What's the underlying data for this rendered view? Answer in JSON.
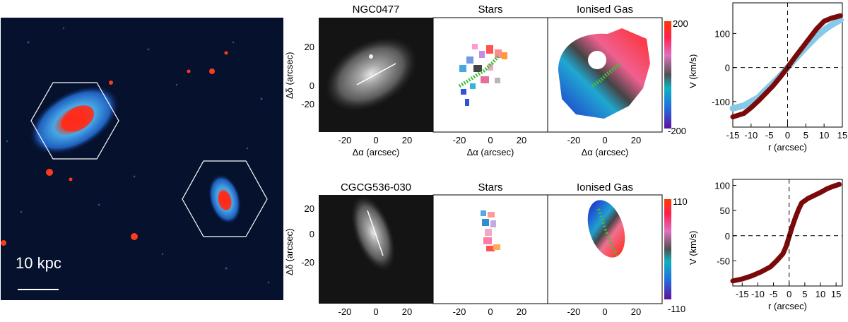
{
  "overview": {
    "scalebar_label": "10 kpc"
  },
  "galaxy_1": {
    "name": "NGC0477",
    "stars_title": "Stars",
    "gas_title": "Ionised Gas",
    "colorbar": {
      "max_label": "200",
      "min_label": "-200",
      "max": 200,
      "min": -200,
      "label": "V (km/s)"
    },
    "ylabel": "Δδ (arcsec)",
    "xlabel": "Δα (arcsec)",
    "map_xticks": [
      "-20",
      "0",
      "20"
    ],
    "map_yticks": [
      "20",
      "0",
      "-20"
    ]
  },
  "galaxy_2": {
    "name": "CGCG536-030",
    "stars_title": "Stars",
    "gas_title": "Ionised Gas",
    "colorbar": {
      "max_label": "110",
      "min_label": "-110",
      "max": 110,
      "min": -110,
      "label": "V (km/s)"
    },
    "ylabel": "Δδ (arcsec)",
    "xlabel": "Δα (arcsec)",
    "map_xticks": [
      "-20",
      "0",
      "20"
    ],
    "map_yticks": [
      "20",
      "0",
      "-20"
    ]
  },
  "chart_data": [
    {
      "type": "line",
      "xlabel": "r (arcsec)",
      "ylabel": "V (km/s)",
      "xlim": [
        -15,
        15
      ],
      "ylim": [
        -175,
        190
      ],
      "xticks": [
        -15,
        -10,
        -5,
        0,
        5,
        10,
        15
      ],
      "yticks": [
        100,
        0,
        -100
      ],
      "series": [
        {
          "color": "#87c9e8",
          "x": [
            -15,
            -12,
            -10,
            -8,
            -6,
            -4,
            -2,
            0,
            2,
            4,
            6,
            8,
            10,
            12,
            14.5
          ],
          "y": [
            -120,
            -112,
            -100,
            -88,
            -66,
            -46,
            -24,
            0,
            24,
            48,
            70,
            92,
            110,
            125,
            140
          ]
        },
        {
          "color": "#7a0a0a",
          "x": [
            -15,
            -12,
            -10,
            -8,
            -6,
            -4,
            -2,
            0,
            2,
            4,
            6,
            8,
            10,
            12,
            14.5
          ],
          "y": [
            -145,
            -135,
            -118,
            -98,
            -76,
            -54,
            -28,
            0,
            30,
            58,
            86,
            114,
            136,
            145,
            152
          ]
        }
      ]
    },
    {
      "type": "line",
      "xlabel": "r (arcsec)",
      "ylabel": "V (km/s)",
      "xlim": [
        -18,
        17
      ],
      "ylim": [
        -100,
        112
      ],
      "xticks": [
        -15,
        -10,
        -5,
        0,
        5,
        10,
        15
      ],
      "yticks": [
        100,
        50,
        0,
        -50
      ],
      "series": [
        {
          "color": "#7a0a0a",
          "x": [
            -18,
            -15,
            -12,
            -9,
            -6,
            -4,
            -2,
            -1,
            0,
            1,
            2,
            3,
            4,
            6,
            8,
            10,
            12,
            14,
            16
          ],
          "y": [
            -90,
            -86,
            -80,
            -72,
            -62,
            -50,
            -36,
            -22,
            -2,
            18,
            36,
            52,
            65,
            74,
            80,
            86,
            93,
            98,
            102
          ]
        }
      ]
    }
  ]
}
